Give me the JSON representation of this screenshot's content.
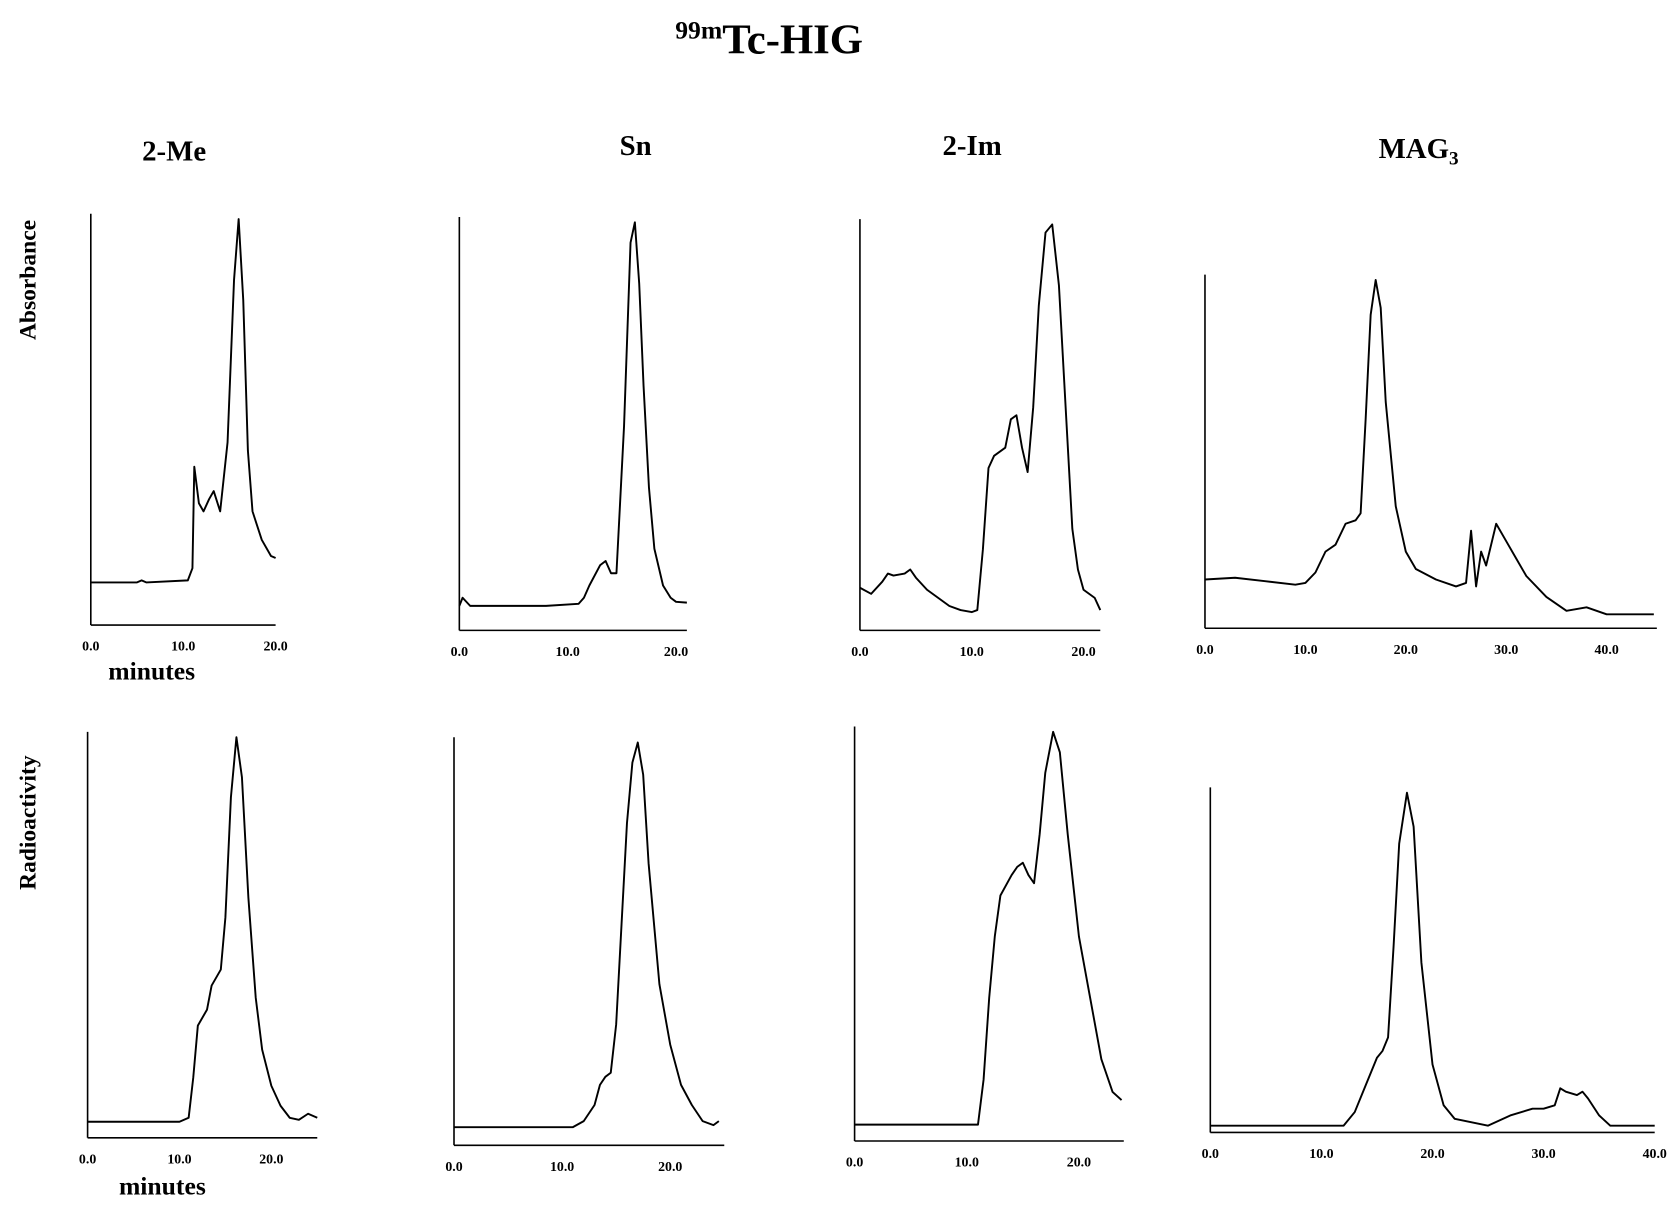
{
  "title": {
    "superscript": "99m",
    "main": "Tc-HIG"
  },
  "columns": [
    {
      "text": "2-Me"
    },
    {
      "text": "Sn"
    },
    {
      "text": "2-Im"
    },
    {
      "text": "MAG",
      "subscript": "3"
    }
  ],
  "rows": [
    "Absorbance",
    "Radioactivity"
  ],
  "x_label": "minutes",
  "chart_data": [
    {
      "type": "line",
      "color": "#000000",
      "xlim": [
        0,
        20
      ],
      "ylim": [
        0,
        100
      ],
      "xticks": [
        {
          "value": 0,
          "label": "0.0"
        },
        {
          "value": 10,
          "label": "10.0"
        },
        {
          "value": 20,
          "label": "20.0"
        }
      ],
      "x": [
        0,
        5,
        5.5,
        6,
        10.5,
        11,
        11.2,
        11.7,
        12.2,
        12.8,
        13.3,
        14,
        14.8,
        15.5,
        16,
        16.5,
        17,
        17.5,
        18.5,
        19.5,
        20
      ],
      "values": [
        10.5,
        10.5,
        11,
        10.5,
        11,
        14,
        39,
        30,
        28,
        31,
        33,
        28,
        45,
        85,
        100,
        80,
        43,
        28,
        21,
        17,
        16.5
      ]
    },
    {
      "type": "line",
      "color": "#000000",
      "xlim": [
        0,
        21
      ],
      "ylim": [
        0,
        100
      ],
      "xticks": [
        {
          "value": 0,
          "label": "0.0"
        },
        {
          "value": 10,
          "label": "10.0"
        },
        {
          "value": 20,
          "label": "20.0"
        }
      ],
      "x": [
        0,
        0.3,
        1,
        8,
        11,
        11.5,
        12,
        13,
        13.5,
        14,
        14.5,
        15.2,
        15.8,
        16.2,
        16.6,
        17,
        17.5,
        18,
        18.8,
        19.5,
        20,
        21
      ],
      "values": [
        6,
        8,
        6,
        6,
        6.5,
        8,
        11,
        16,
        17,
        14,
        14,
        50,
        95,
        100,
        85,
        60,
        35,
        20,
        11,
        8,
        7,
        6.8
      ]
    },
    {
      "type": "line",
      "color": "#000000",
      "xlim": [
        0,
        21.5
      ],
      "ylim": [
        0,
        100
      ],
      "xticks": [
        {
          "value": 0,
          "label": "0.0"
        },
        {
          "value": 10,
          "label": "10.0"
        },
        {
          "value": 20,
          "label": "20.0"
        }
      ],
      "x": [
        0,
        1,
        2,
        2.5,
        3,
        4,
        4.5,
        5,
        6,
        7,
        8,
        9,
        10,
        10.5,
        11,
        11.5,
        12,
        13,
        13.5,
        14,
        14.5,
        15,
        15.5,
        16,
        16.6,
        17.2,
        17.8,
        18.5,
        19,
        19.5,
        20,
        21,
        21.5
      ],
      "values": [
        10.5,
        9,
        12,
        14,
        13.5,
        14,
        15,
        13,
        10,
        8,
        6,
        5,
        4.5,
        5,
        20,
        40,
        43,
        45,
        52,
        53,
        45,
        39,
        55,
        80,
        98,
        100,
        85,
        50,
        25,
        15,
        10,
        8,
        5
      ]
    },
    {
      "type": "line",
      "color": "#000000",
      "xlim": [
        0,
        45
      ],
      "ylim": [
        0,
        100
      ],
      "xticks": [
        {
          "value": 0,
          "label": "0.0"
        },
        {
          "value": 10,
          "label": "10.0"
        },
        {
          "value": 20,
          "label": "20.0"
        },
        {
          "value": 30,
          "label": "30.0"
        },
        {
          "value": 40,
          "label": "40.0"
        }
      ],
      "x": [
        0,
        3,
        6,
        9,
        10,
        11,
        12,
        13,
        14,
        15,
        15.5,
        16,
        16.5,
        17,
        17.5,
        18,
        19,
        20,
        21,
        23,
        25,
        26,
        26.5,
        27,
        27.5,
        28,
        29,
        30,
        31,
        32,
        34,
        36,
        38,
        40,
        42,
        44.7
      ],
      "values": [
        14,
        14.5,
        13.5,
        12.5,
        13,
        16,
        22,
        24,
        30,
        31,
        33,
        60,
        90,
        100,
        92,
        65,
        35,
        22,
        17,
        14,
        12,
        13,
        28,
        12,
        22,
        18,
        30,
        25,
        20,
        15,
        9,
        5,
        6,
        4,
        4,
        4
      ]
    },
    {
      "type": "line",
      "color": "#000000",
      "xlim": [
        0,
        25
      ],
      "ylim": [
        0,
        100
      ],
      "xticks": [
        {
          "value": 0,
          "label": "0.0"
        },
        {
          "value": 10,
          "label": "10.0"
        },
        {
          "value": 20,
          "label": "20.0"
        }
      ],
      "x": [
        0,
        10,
        11,
        11.5,
        12,
        13,
        13.5,
        14,
        14.5,
        15,
        15.6,
        16.2,
        16.8,
        17.5,
        18.3,
        19,
        20,
        21,
        22,
        23,
        24,
        25
      ],
      "values": [
        4,
        4,
        5,
        15,
        28,
        32,
        38,
        40,
        42,
        55,
        85,
        100,
        90,
        60,
        35,
        22,
        13,
        8,
        5,
        4.5,
        6,
        5
      ]
    },
    {
      "type": "line",
      "color": "#000000",
      "xlim": [
        0,
        25
      ],
      "ylim": [
        0,
        100
      ],
      "xticks": [
        {
          "value": 0,
          "label": "0.0"
        },
        {
          "value": 10,
          "label": "10.0"
        },
        {
          "value": 20,
          "label": "20.0"
        }
      ],
      "x": [
        0,
        11,
        12,
        13,
        13.5,
        14,
        14.5,
        15,
        15.5,
        16,
        16.5,
        17,
        17.5,
        18,
        19,
        20,
        21,
        22,
        23,
        24,
        24.5
      ],
      "values": [
        4.5,
        4.5,
        6,
        10,
        15,
        17,
        18,
        30,
        55,
        80,
        95,
        100,
        92,
        70,
        40,
        25,
        15,
        10,
        6,
        5,
        6
      ]
    },
    {
      "type": "line",
      "color": "#000000",
      "xlim": [
        0,
        24
      ],
      "ylim": [
        0,
        100
      ],
      "xticks": [
        {
          "value": 0,
          "label": "0.0"
        },
        {
          "value": 10,
          "label": "10.0"
        },
        {
          "value": 20,
          "label": "20.0"
        }
      ],
      "x": [
        0,
        11,
        11.5,
        12,
        12.5,
        13,
        14,
        14.5,
        15,
        15.5,
        16,
        16.5,
        17,
        17.7,
        18.3,
        19,
        20,
        21,
        22,
        23,
        23.8
      ],
      "values": [
        4,
        4,
        15,
        35,
        50,
        60,
        65,
        67,
        68,
        65,
        63,
        75,
        90,
        100,
        95,
        75,
        50,
        35,
        20,
        12,
        10
      ]
    },
    {
      "type": "line",
      "color": "#000000",
      "xlim": [
        0,
        40
      ],
      "ylim": [
        0,
        100
      ],
      "xticks": [
        {
          "value": 0,
          "label": "0.0"
        },
        {
          "value": 10,
          "label": "10.0"
        },
        {
          "value": 20,
          "label": "20.0"
        },
        {
          "value": 30,
          "label": "30.0"
        },
        {
          "value": 40,
          "label": "40.0"
        }
      ],
      "x": [
        0,
        12,
        13,
        14,
        15,
        15.5,
        16,
        16.5,
        17,
        17.7,
        18.3,
        19,
        20,
        21,
        22,
        25,
        27,
        29,
        30,
        31,
        31.5,
        32,
        33,
        33.5,
        34,
        35,
        36,
        40
      ],
      "values": [
        2,
        2,
        6,
        14,
        22,
        24,
        28,
        55,
        85,
        100,
        90,
        50,
        20,
        8,
        4,
        2,
        5,
        7,
        7,
        8,
        13,
        12,
        11,
        12,
        10,
        5,
        2,
        2
      ]
    }
  ]
}
